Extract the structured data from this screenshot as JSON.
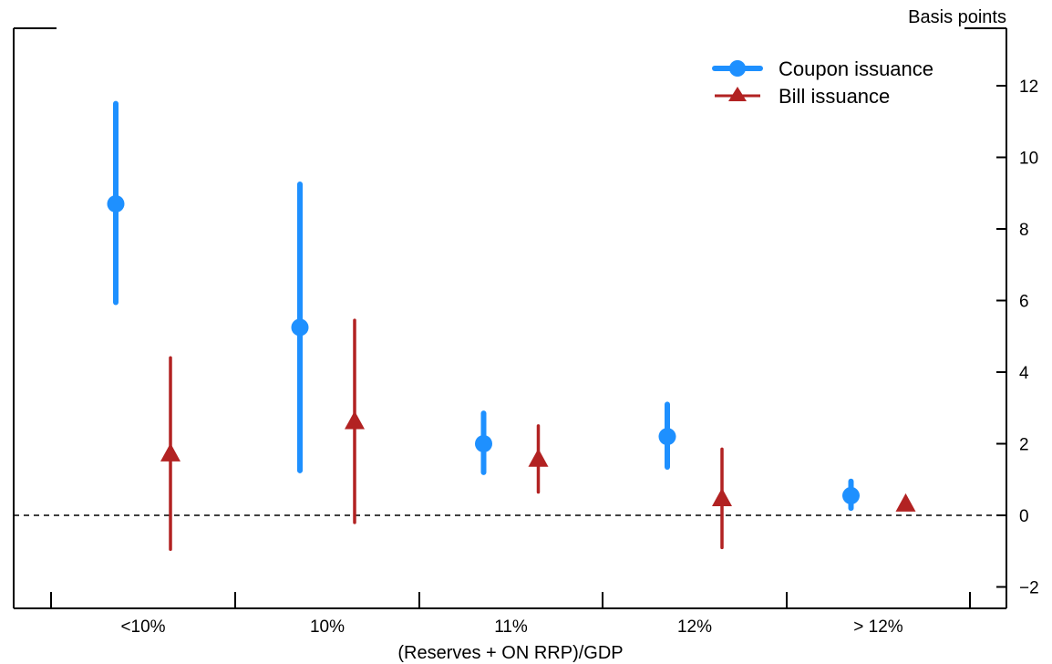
{
  "chart_data": {
    "type": "scatter",
    "subtype": "point-estimate with confidence intervals",
    "categories": [
      "<10%",
      "10%",
      "11%",
      "12%",
      "> 12%"
    ],
    "xlabel": "(Reserves + ON RRP)/GDP",
    "ylabel": "Basis points",
    "ylim": [
      -2.4,
      13.5
    ],
    "yticks": [
      -2,
      0,
      2,
      4,
      6,
      8,
      10,
      12
    ],
    "y_axis_side": "right",
    "reference_line": {
      "y": 0,
      "style": "dashed"
    },
    "grid": false,
    "legend_position": "top-right",
    "series": [
      {
        "name": "Coupon issuance",
        "color": "#1E90FF",
        "marker": "circle",
        "values": [
          8.7,
          5.25,
          2.0,
          2.2,
          0.55
        ],
        "lower": [
          5.95,
          1.25,
          1.2,
          1.35,
          0.2
        ],
        "upper": [
          11.5,
          9.25,
          2.85,
          3.1,
          0.95
        ]
      },
      {
        "name": "Bill issuance",
        "color": "#B22222",
        "marker": "triangle",
        "values": [
          1.7,
          2.6,
          1.55,
          0.45,
          0.3
        ],
        "lower": [
          -0.95,
          -0.2,
          0.65,
          -0.9,
          0.3
        ],
        "upper": [
          4.4,
          5.45,
          2.5,
          1.85,
          0.3
        ]
      }
    ]
  }
}
